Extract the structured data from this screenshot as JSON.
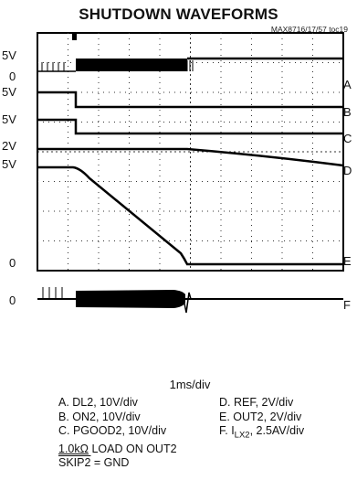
{
  "chart_data": {
    "type": "line",
    "title": "SHUTDOWN WAVEFORMS",
    "figure_id": "MAX8716/17/57 toc19",
    "timebase": "1ms/div",
    "left_labels": [
      "5V",
      "0",
      "5V",
      "5V",
      "2V",
      "5V",
      "0",
      "0"
    ],
    "right_labels": [
      "A",
      "B",
      "C",
      "D",
      "E",
      "F"
    ],
    "legend": [
      {
        "key": "A",
        "text": "A. DL2, 10V/div"
      },
      {
        "key": "B",
        "text": "B. ON2, 10V/div"
      },
      {
        "key": "C",
        "text": "C. PGOOD2, 10V/div"
      },
      {
        "key": "D",
        "text": "D. REF, 2V/div"
      },
      {
        "key": "E",
        "text": "E. OUT2, 2V/div"
      },
      {
        "key": "F_prefix",
        "text": "F. I"
      },
      {
        "key": "F_sub",
        "text": "LX2"
      },
      {
        "key": "F_suffix",
        "text": ", 2.5AV/div"
      }
    ],
    "conditions": {
      "load_value": "1.0kΩ",
      "load_rest": " LOAD ON OUT2",
      "skip_name": "SKIP2",
      "skip_rest": " = GND"
    }
  }
}
